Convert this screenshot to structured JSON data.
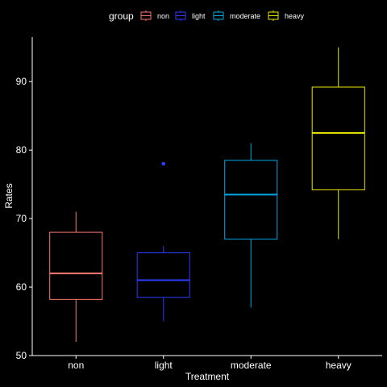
{
  "chart_data": {
    "type": "box",
    "title": "",
    "xlabel": "Treatment",
    "ylabel": "Rates",
    "ylim": [
      50,
      96.5
    ],
    "yticks": [
      50,
      60,
      70,
      80,
      90
    ],
    "grid": false,
    "legend": {
      "title": "group",
      "placement": "top",
      "entries": [
        "non",
        "light",
        "moderate",
        "heavy"
      ]
    },
    "categories": [
      "non",
      "light",
      "moderate",
      "heavy"
    ],
    "series": [
      {
        "name": "non",
        "color": "#F8766D",
        "min": 52,
        "q1": 58.2,
        "median": 62,
        "q3": 68,
        "max": 71,
        "outliers": []
      },
      {
        "name": "light",
        "color": "#2B3BFF",
        "min": 55,
        "q1": 58.5,
        "median": 61,
        "q3": 65,
        "max": 66,
        "outliers": [
          78
        ]
      },
      {
        "name": "moderate",
        "color": "#00A8E8",
        "min": 57,
        "q1": 67,
        "median": 73.5,
        "q3": 78.5,
        "max": 81,
        "outliers": []
      },
      {
        "name": "heavy",
        "color": "#E8E800",
        "min": 67,
        "q1": 74.2,
        "median": 82.5,
        "q3": 89.2,
        "max": 95,
        "outliers": []
      }
    ]
  }
}
